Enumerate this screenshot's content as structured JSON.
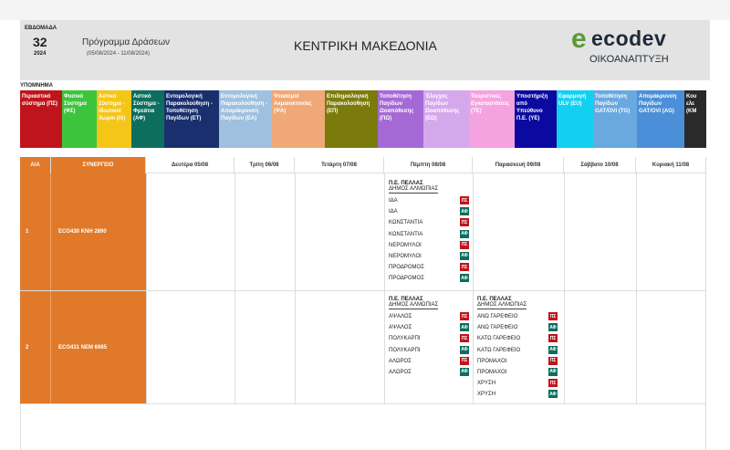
{
  "header": {
    "week_label": "ΕΒΔΟΜΑΔΑ",
    "week_number": "32",
    "year": "2024",
    "program_title": "Πρόγραμμα Δράσεων",
    "date_range": "(05/08/2024 - 11/08/2024)",
    "region": "ΚΕΝΤΡΙΚΗ ΜΑΚΕΔΟΝΙΑ",
    "logo_letter": "e",
    "logo_text": "ecodev",
    "logo_sub": "ΟΙΚΟΑΝΑΠΤΥΞΗ"
  },
  "legend": {
    "title": "ΥΠΟΜΝΗΜΑ",
    "items": [
      {
        "label": "Περιαστικό σύστημα (ΠΣ)",
        "color": "#c0141c",
        "width": 46
      },
      {
        "label": "Φυσικό Σύστημα (ΦΣ)",
        "color": "#3dc43d",
        "width": 38
      },
      {
        "label": "Αστικό Σύστημα - Ιδιωτικοί Χώροι (ΙΧ)",
        "color": "#f5c518",
        "width": 38
      },
      {
        "label": "Αστικό Σύστημα - Φρεάτια (ΑΦ)",
        "color": "#0d6e5e",
        "width": 36
      },
      {
        "label": "Εντομολογική Παρακολούθηση - Τοποθέτηση Παγίδων (ΕΤ)",
        "color": "#1a2f6e",
        "width": 60
      },
      {
        "label": "Εντομολογική Παρακολούθηση - Απομάκρυνση Παγίδων (ΕΑ)",
        "color": "#9fc0df",
        "width": 58
      },
      {
        "label": "Ψεκασμοί Ακμαιοκτονίας (ΨΑ)",
        "color": "#f0a878",
        "width": 58
      },
      {
        "label": "Επιδημιολογική Παρακολούθηση (ΕΠ)",
        "color": "#7b7b0c",
        "width": 58
      },
      {
        "label": "Τοποθέτηση Παγίδων Ωοαπόθεσης (ΠΩ)",
        "color": "#a569d6",
        "width": 50
      },
      {
        "label": "Έλεγχος Παγίδων Ωοαπόθεσης (ΕΩ)",
        "color": "#d5a8ec",
        "width": 50
      },
      {
        "label": "Τουριστικές Εγκαταστάσεις (ΤΕ)",
        "color": "#f5a2e0",
        "width": 50
      },
      {
        "label": "Υποστήριξη από Υπεύθυνο Π.Ε. (ΥΕ)",
        "color": "#0a0aa0",
        "width": 46
      },
      {
        "label": "Εφαρμογή ULV (EU)",
        "color": "#12d0f0",
        "width": 40
      },
      {
        "label": "Τοποθέτηση Παγίδων GAT/OVI (TG)",
        "color": "#6aa8e0",
        "width": 48
      },
      {
        "label": "Απομάκρυνση Παγίδων GAT/OVI (AG)",
        "color": "#4b8fd8",
        "width": 52
      },
      {
        "label": "Κου ελε (ΚΜ",
        "color": "#2a2a2a",
        "width": 24
      }
    ]
  },
  "table": {
    "headers": {
      "id": "Α/Α",
      "partner": "ΣΥΝΕΡΓΕΙΟ",
      "days": [
        "Δευτέρα 05/08",
        "Τρίτη 06/08",
        "Τετάρτη 07/08",
        "Πέμπτη 08/08",
        "Παρασκευή 09/08",
        "Σάββατο 10/08",
        "Κυριακή 11/08"
      ]
    },
    "rows": [
      {
        "id": "1",
        "partner": "ECO430  ΚΝΗ 2890",
        "thursday": {
          "pe": "Π.Ε. ΠΕΛΛΑΣ",
          "dimos": "ΔΗΜΟΣ ΑΛΜΩΠΙΑΣ",
          "entries": [
            {
              "place": "ΙΔΑ",
              "code": "ΠΣ",
              "color": "#c0141c"
            },
            {
              "place": "ΙΔΑ",
              "code": "ΑΦ",
              "color": "#0d6e5e"
            },
            {
              "place": "ΚΩΝΣΤΑΝΤΙΑ",
              "code": "ΠΣ",
              "color": "#c0141c"
            },
            {
              "place": "ΚΩΝΣΤΑΝΤΙΑ",
              "code": "ΑΦ",
              "color": "#0d6e5e"
            },
            {
              "place": "ΝΕΡΟΜΥΛΟΙ",
              "code": "ΠΣ",
              "color": "#c0141c"
            },
            {
              "place": "ΝΕΡΟΜΥΛΟΙ",
              "code": "ΑΦ",
              "color": "#0d6e5e"
            },
            {
              "place": "ΠΡΟΔΡΟΜΟΣ",
              "code": "ΠΣ",
              "color": "#c0141c"
            },
            {
              "place": "ΠΡΟΔΡΟΜΟΣ",
              "code": "ΑΦ",
              "color": "#0d6e5e"
            }
          ]
        }
      },
      {
        "id": "2",
        "partner": "ECO431  ΝΕΜ 6985",
        "thursday": {
          "pe": "Π.Ε. ΠΕΛΛΑΣ",
          "dimos": "ΔΗΜΟΣ ΑΛΜΩΠΙΑΣ",
          "entries": [
            {
              "place": "ΑΨΑΛΟΣ",
              "code": "ΠΣ",
              "color": "#c0141c"
            },
            {
              "place": "ΑΨΑΛΟΣ",
              "code": "ΑΦ",
              "color": "#0d6e5e"
            },
            {
              "place": "ΠΟΛΥΚΑΡΠΙ",
              "code": "ΠΣ",
              "color": "#c0141c"
            },
            {
              "place": "ΠΟΛΥΚΑΡΠΙ",
              "code": "ΑΦ",
              "color": "#0d6e5e"
            },
            {
              "place": "ΑΛΩΡΟΣ",
              "code": "ΠΣ",
              "color": "#c0141c"
            },
            {
              "place": "ΑΛΩΡΟΣ",
              "code": "ΑΦ",
              "color": "#0d6e5e"
            }
          ]
        },
        "friday": {
          "pe": "Π.Ε. ΠΕΛΛΑΣ",
          "dimos": "ΔΗΜΟΣ ΑΛΜΩΠΙΑΣ",
          "entries": [
            {
              "place": "ΑΝΩ ΓΑΡΕΦΕΙΟ",
              "code": "ΠΣ",
              "color": "#c0141c"
            },
            {
              "place": "ΑΝΩ ΓΑΡΕΦΕΙΟ",
              "code": "ΑΦ",
              "color": "#0d6e5e"
            },
            {
              "place": "ΚΑΤΩ ΓΑΡΕΦΕΙΟ",
              "code": "ΠΣ",
              "color": "#c0141c"
            },
            {
              "place": "ΚΑΤΩ ΓΑΡΕΦΕΙΟ",
              "code": "ΑΦ",
              "color": "#0d6e5e"
            },
            {
              "place": "ΠΡΟΜΑΧΟΙ",
              "code": "ΠΣ",
              "color": "#c0141c"
            },
            {
              "place": "ΠΡΟΜΑΧΟΙ",
              "code": "ΑΦ",
              "color": "#0d6e5e"
            },
            {
              "place": "ΧΡΥΣΗ",
              "code": "ΠΣ",
              "color": "#c0141c"
            },
            {
              "place": "ΧΡΥΣΗ",
              "code": "ΑΦ",
              "color": "#0d6e5e"
            }
          ]
        }
      }
    ]
  }
}
